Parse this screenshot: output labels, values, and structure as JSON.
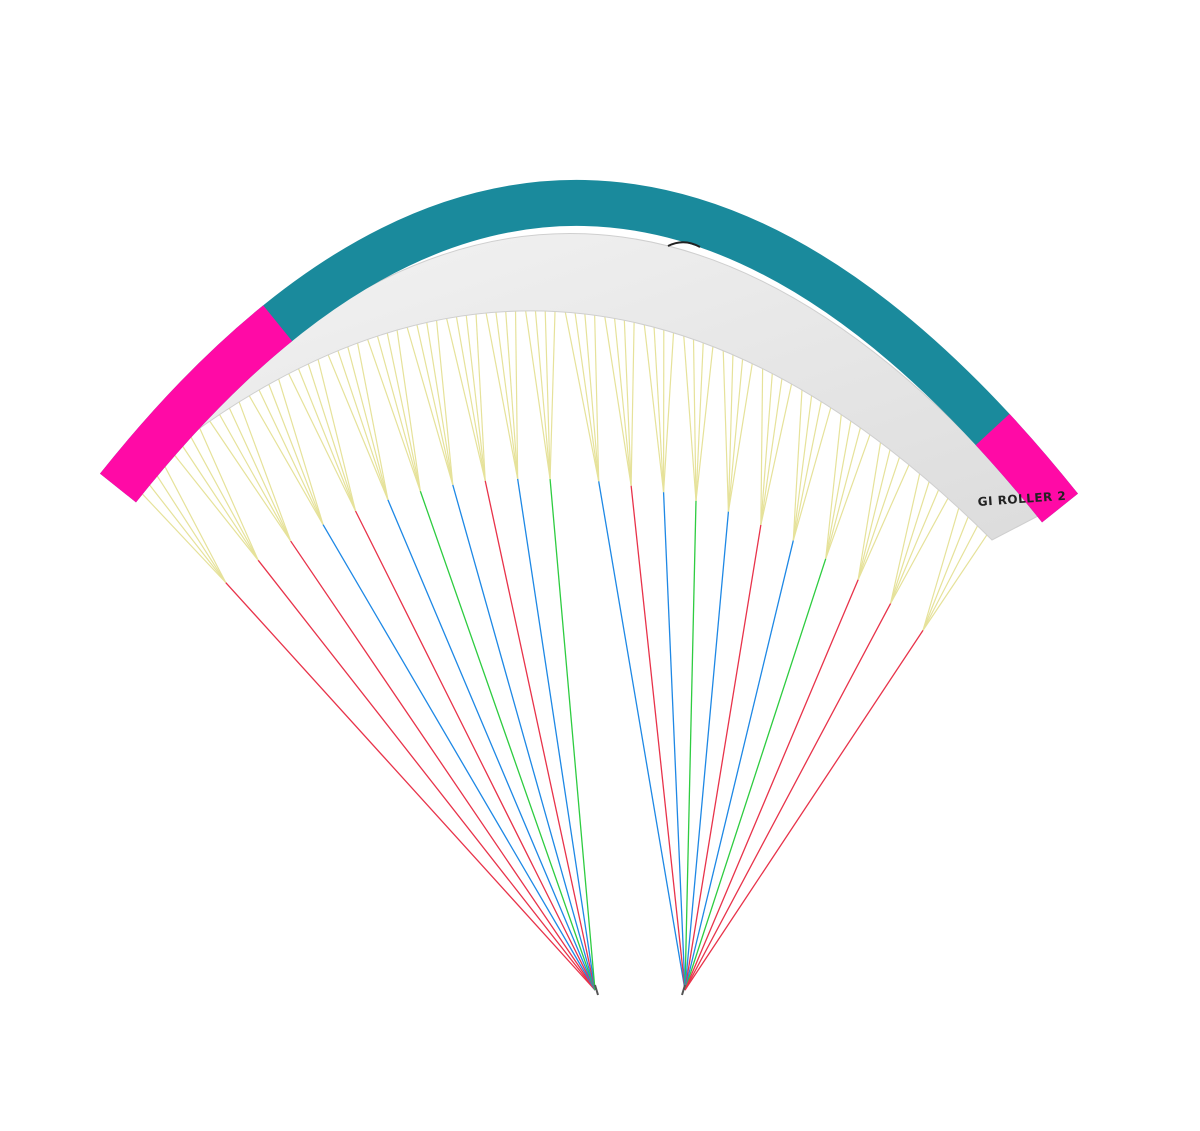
{
  "image": {
    "label": "GI ROLLER 2"
  }
}
